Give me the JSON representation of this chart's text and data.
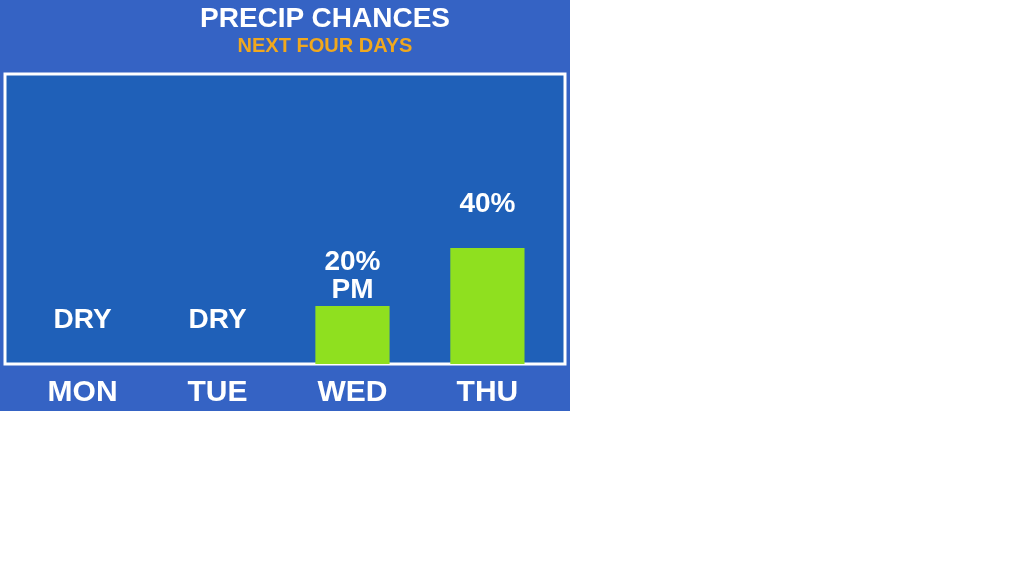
{
  "chart_data": {
    "type": "bar",
    "title": "PRECIP CHANCES",
    "subtitle": "NEXT FOUR DAYS",
    "categories": [
      "MON",
      "TUE",
      "WED",
      "THU"
    ],
    "values": [
      0,
      0,
      20,
      40
    ],
    "value_labels": [
      "DRY",
      "DRY",
      "20% PM",
      "40%"
    ],
    "color": "#8fe01f",
    "ylim": [
      0,
      100
    ],
    "tick_labels": "x",
    "grid": false
  }
}
